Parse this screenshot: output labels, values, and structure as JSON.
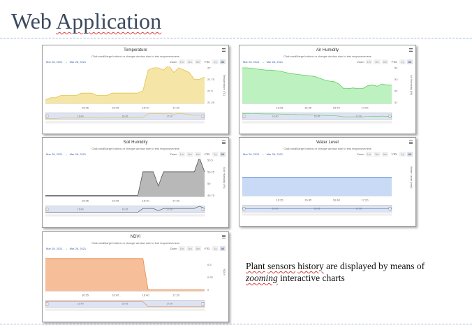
{
  "slide": {
    "title_word1": "Web",
    "title_word2": "Application",
    "caption_part1": "Plant",
    "caption_part2": "sensors",
    "caption_part3": "history",
    "caption_part4": "are displayed by means of",
    "caption_zoom": "zooming",
    "caption_part5": "interactive charts"
  },
  "common": {
    "subtitle": "Click small/large buttons or change window size to test responsiveness",
    "range_from": "Mar 28, 2021",
    "range_arrow": "→",
    "range_to": "Mar 28, 2021",
    "zoom_label": "Zoom",
    "zoom_buttons": [
      "1m",
      "3m",
      "6m",
      "YTD",
      "1y",
      "All"
    ],
    "x_ticks": [
      "16:35",
      "16:45",
      "16:40",
      "17:20"
    ],
    "nav_ticks": [
      "16:40",
      "16:45",
      "17:00"
    ]
  },
  "charts": [
    {
      "id": "temperature",
      "title": "Temperature",
      "ylabel": "Temperature (°C)",
      "ticks": [
        "22",
        "21.75",
        "21.5",
        "21.25"
      ],
      "color": "#e3c24a",
      "fill": "#f2dd8a",
      "values": [
        21.3,
        21.35,
        21.35,
        21.4,
        21.4,
        21.4,
        21.4,
        21.45,
        21.45,
        21.45,
        21.4,
        21.4,
        21.4,
        21.45,
        21.45,
        21.45,
        21.45,
        21.45,
        21.45,
        21.5,
        21.95,
        22.0,
        22.0,
        21.95,
        22.05,
        21.9,
        22.0,
        21.95,
        21.9,
        21.75,
        21.75,
        21.8
      ]
    },
    {
      "id": "air-humidity",
      "title": "Air Humidity",
      "ylabel": "Air Humidity (%)",
      "ticks": [
        "54",
        "53",
        "52",
        "51"
      ],
      "color": "#5ccf5c",
      "fill": "#a8ecab",
      "values": [
        54,
        54,
        53.95,
        53.9,
        53.85,
        53.8,
        53.8,
        53.75,
        53.7,
        53.6,
        53.5,
        53.45,
        53.4,
        53.35,
        53.3,
        53.25,
        53.1,
        52.95,
        52.85,
        52.8,
        52.6,
        52.2,
        52.2,
        52.25,
        52.2,
        52.2,
        52.45,
        52.5,
        52.4,
        52.6,
        52.5,
        52.5
      ]
    },
    {
      "id": "soil-humidity",
      "title": "Soil Humidity",
      "ylabel": "Soil Humidity (%)",
      "ticks": [
        "50.5",
        "50.25",
        "50",
        "49.75"
      ],
      "color": "#555555",
      "fill": "#a0a0a0",
      "values": [
        49.75,
        49.75,
        49.75,
        49.75,
        49.75,
        49.75,
        49.75,
        49.75,
        49.75,
        49.75,
        49.75,
        49.75,
        49.75,
        49.75,
        49.75,
        49.75,
        49.75,
        49.75,
        49.75,
        50.25,
        50.25,
        50.25,
        49.95,
        50.25,
        50.25,
        50.25,
        50.25,
        50.25,
        50.25,
        50.25,
        50.55,
        50.25
      ]
    },
    {
      "id": "water-level",
      "title": "Water Level",
      "ylabel": "Water Level (mm)",
      "ticks": [],
      "color": "#4f86d9",
      "fill": "#b6cdf2",
      "values": [
        1,
        1,
        1,
        1,
        1,
        1,
        1,
        1,
        1,
        1,
        1,
        1,
        1,
        1,
        1,
        1,
        1,
        1,
        1,
        1,
        1,
        1,
        1,
        1,
        1,
        1,
        1,
        1,
        1,
        1,
        1,
        1
      ]
    },
    {
      "id": "ndvi",
      "title": "NDVI",
      "ylabel": "NDVI",
      "ticks": [
        "0.5",
        "0.25",
        "0"
      ],
      "color": "#e9874a",
      "fill": "#f4a878",
      "values": [
        0.62,
        0.62,
        0.62,
        0.62,
        0.62,
        0.62,
        0.62,
        0.62,
        0.62,
        0.62,
        0.62,
        0.62,
        0.62,
        0.62,
        0.62,
        0.62,
        0.62,
        0.62,
        0.62,
        0.62,
        0,
        0,
        0,
        0,
        0,
        0,
        0,
        0,
        0,
        0,
        0,
        0
      ]
    }
  ]
}
